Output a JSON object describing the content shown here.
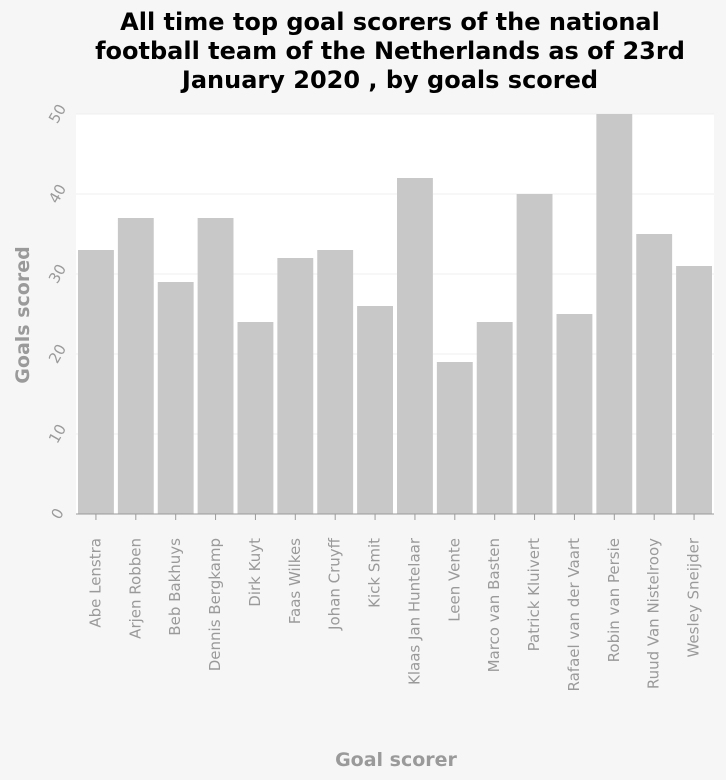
{
  "chart_data": {
    "type": "bar",
    "title_lines": [
      "All time top goal scorers of the national",
      "football team of the Netherlands as of 23rd",
      "January 2020 , by goals scored"
    ],
    "xlabel": "Goal scorer",
    "ylabel": "Goals scored",
    "ylim": [
      0,
      50
    ],
    "yticks": [
      "0",
      "10",
      "20",
      "30",
      "40",
      "50"
    ],
    "grid": true,
    "bar_color": "#c8c8c8",
    "categories": [
      "Abe Lenstra",
      "Arjen Robben",
      "Beb Bakhuys",
      "Dennis Bergkamp",
      "Dirk Kuyt",
      "Faas Wilkes",
      "Johan Cruyff",
      "Kick Smit",
      "Klaas Jan Huntelaar",
      "Leen Vente",
      "Marco van Basten",
      "Patrick Kluivert",
      "Rafael van der Vaart",
      "Robin van Persie",
      "Ruud Van Nistelrooy",
      "Wesley Sneijder"
    ],
    "values": [
      33,
      37,
      29,
      37,
      24,
      32,
      33,
      26,
      42,
      19,
      24,
      40,
      25,
      50,
      35,
      31
    ]
  }
}
